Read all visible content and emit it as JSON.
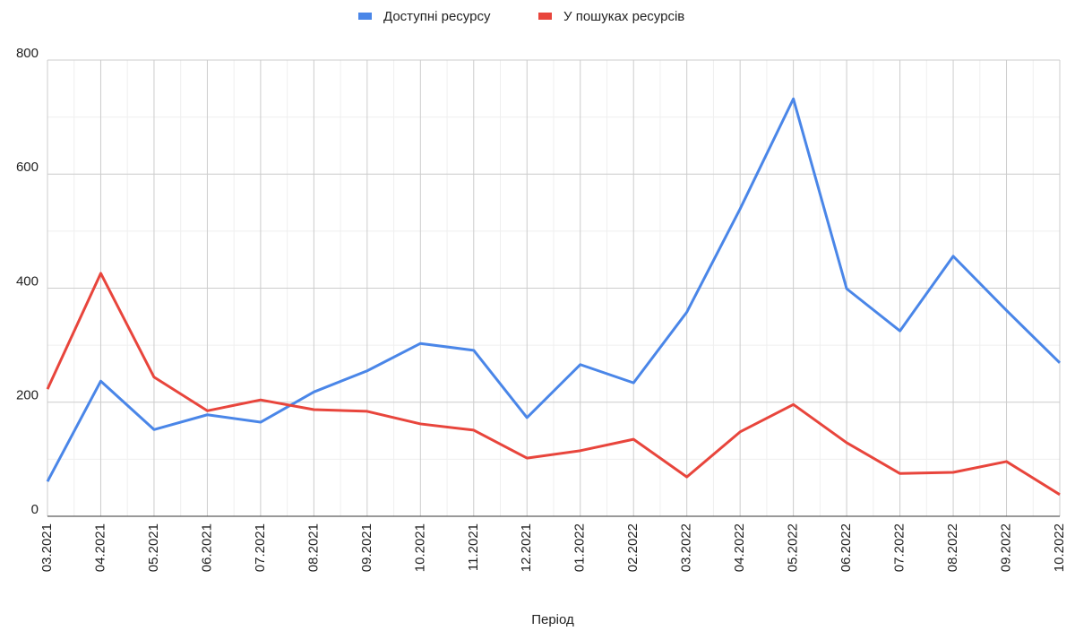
{
  "chart_data": {
    "type": "line",
    "x_label": "Період",
    "categories": [
      "03.2021",
      "04.2021",
      "05.2021",
      "06.2021",
      "07.2021",
      "08.2021",
      "09.2021",
      "10.2021",
      "11.2021",
      "12.2021",
      "01.2022",
      "02.2022",
      "03.2022",
      "04.2022",
      "05.2022",
      "06.2022",
      "07.2022",
      "08.2022",
      "09.2022",
      "10.2022"
    ],
    "series": [
      {
        "name": "Доступні ресурсу",
        "color": "#4a86e8",
        "values": [
          61,
          237,
          152,
          178,
          165,
          218,
          255,
          303,
          291,
          173,
          266,
          234,
          358,
          539,
          732,
          399,
          325,
          456,
          361,
          269
        ]
      },
      {
        "name": "У пошуках ресурсів",
        "color": "#e8453c",
        "values": [
          223,
          426,
          244,
          185,
          204,
          187,
          184,
          162,
          151,
          102,
          115,
          135,
          69,
          148,
          196,
          129,
          75,
          77,
          96,
          38
        ]
      }
    ],
    "ylim": [
      0,
      800
    ],
    "yticks": [
      0,
      200,
      400,
      600,
      800
    ],
    "grid": true,
    "legend": "top"
  }
}
